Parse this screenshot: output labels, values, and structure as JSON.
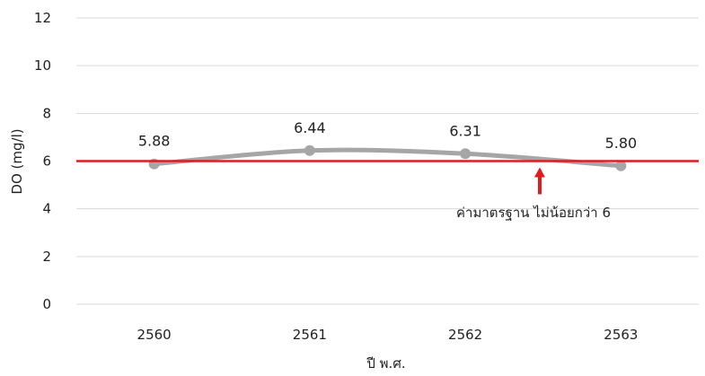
{
  "chart_data": {
    "type": "line",
    "title": "",
    "xlabel": "ปี พ.ศ.",
    "ylabel": "DO (mg/l)",
    "categories": [
      "2560",
      "2561",
      "2562",
      "2563"
    ],
    "series": [
      {
        "values": [
          5.88,
          6.44,
          6.31,
          5.8
        ],
        "labels": [
          "5.88",
          "6.44",
          "6.31",
          "5.80"
        ],
        "color": "#a6a6a6"
      }
    ],
    "ylim": [
      0,
      12
    ],
    "yticks": [
      0,
      2,
      4,
      6,
      8,
      10,
      12
    ],
    "ytick_labels": [
      "0",
      "2",
      "4",
      "6",
      "8",
      "10",
      "12"
    ],
    "grid": true,
    "legend": "none",
    "reference_line": {
      "value": 6,
      "color": "#e31a1c"
    },
    "annotation": {
      "text": "ค่ามาตรฐาน ไม่น้อยกว่า 6",
      "arrow_color": "#e31a1c"
    }
  }
}
